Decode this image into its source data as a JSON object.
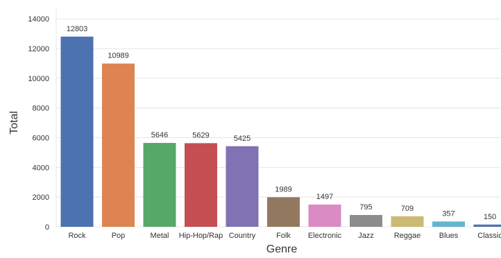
{
  "chart_data": {
    "type": "bar",
    "xlabel": "Genre",
    "ylabel": "Total",
    "ylim": [
      0,
      14800
    ],
    "yticks": [
      "0",
      "2000",
      "4000",
      "6000",
      "8000",
      "10000",
      "12000",
      "14000"
    ],
    "grid": true,
    "categories": [
      "Rock",
      "Pop",
      "Metal",
      "Hip-Hop/Rap",
      "Country",
      "Folk",
      "Electronic",
      "Jazz",
      "Reggae",
      "Blues",
      "Classic"
    ],
    "values": [
      12803,
      10989,
      5646,
      5629,
      5425,
      1989,
      1497,
      795,
      709,
      357,
      150
    ],
    "data_labels": [
      "12803",
      "10989",
      "5646",
      "5629",
      "5425",
      "1989",
      "1497",
      "795",
      "709",
      "357",
      "150"
    ],
    "colors": [
      "#4c72b0",
      "#dd8452",
      "#55a868",
      "#c44e52",
      "#8172b3",
      "#937860",
      "#da8bc3",
      "#8c8c8c",
      "#ccb974",
      "#64b5cd",
      "#4c72b0"
    ]
  }
}
